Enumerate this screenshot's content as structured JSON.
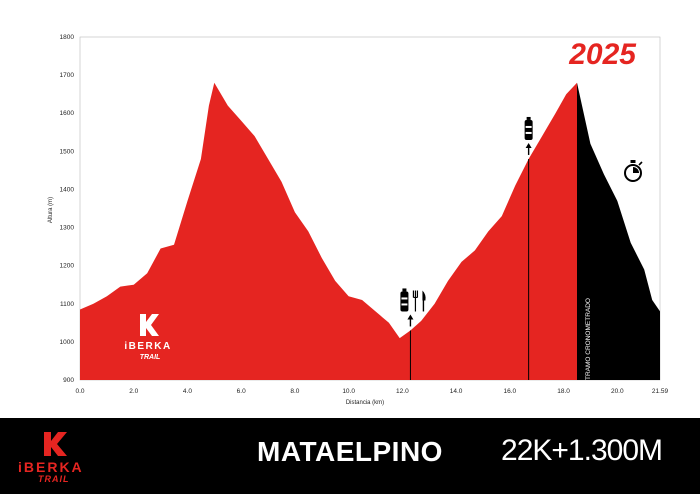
{
  "chart_data": {
    "type": "area",
    "title": "",
    "year_label": "2025",
    "xlabel": "Distancia (km)",
    "ylabel": "Altura (m)",
    "xlim": [
      0,
      21.59
    ],
    "ylim": [
      900,
      1800
    ],
    "x_ticks": [
      "0.0",
      "2.0",
      "4.0",
      "6.0",
      "8.0",
      "10.0",
      "12.0",
      "14.0",
      "16.0",
      "18.0",
      "20.0",
      "21.59"
    ],
    "y_ticks": [
      "1800",
      "1700",
      "1600",
      "1500",
      "1400",
      "1300",
      "1200",
      "1100",
      "1000",
      "900"
    ],
    "timed_section_label": "TRAMO CRONOMETRADO",
    "timed_section_start_km": 18.5,
    "profile": [
      {
        "x": 0.0,
        "y": 1085
      },
      {
        "x": 0.5,
        "y": 1100
      },
      {
        "x": 1.0,
        "y": 1120
      },
      {
        "x": 1.5,
        "y": 1145
      },
      {
        "x": 2.0,
        "y": 1150
      },
      {
        "x": 2.5,
        "y": 1180
      },
      {
        "x": 3.0,
        "y": 1245
      },
      {
        "x": 3.5,
        "y": 1255
      },
      {
        "x": 4.0,
        "y": 1370
      },
      {
        "x": 4.5,
        "y": 1480
      },
      {
        "x": 4.8,
        "y": 1620
      },
      {
        "x": 5.0,
        "y": 1680
      },
      {
        "x": 5.5,
        "y": 1620
      },
      {
        "x": 6.0,
        "y": 1580
      },
      {
        "x": 6.5,
        "y": 1540
      },
      {
        "x": 7.0,
        "y": 1480
      },
      {
        "x": 7.5,
        "y": 1420
      },
      {
        "x": 8.0,
        "y": 1340
      },
      {
        "x": 8.5,
        "y": 1290
      },
      {
        "x": 9.0,
        "y": 1220
      },
      {
        "x": 9.5,
        "y": 1160
      },
      {
        "x": 10.0,
        "y": 1120
      },
      {
        "x": 10.5,
        "y": 1110
      },
      {
        "x": 11.0,
        "y": 1080
      },
      {
        "x": 11.5,
        "y": 1050
      },
      {
        "x": 11.9,
        "y": 1010
      },
      {
        "x": 12.3,
        "y": 1030
      },
      {
        "x": 12.7,
        "y": 1055
      },
      {
        "x": 13.2,
        "y": 1100
      },
      {
        "x": 13.7,
        "y": 1160
      },
      {
        "x": 14.2,
        "y": 1210
      },
      {
        "x": 14.7,
        "y": 1240
      },
      {
        "x": 15.2,
        "y": 1290
      },
      {
        "x": 15.7,
        "y": 1330
      },
      {
        "x": 16.2,
        "y": 1410
      },
      {
        "x": 16.7,
        "y": 1480
      },
      {
        "x": 17.2,
        "y": 1540
      },
      {
        "x": 17.7,
        "y": 1600
      },
      {
        "x": 18.1,
        "y": 1650
      },
      {
        "x": 18.5,
        "y": 1680
      },
      {
        "x": 19.0,
        "y": 1520
      },
      {
        "x": 19.5,
        "y": 1440
      },
      {
        "x": 20.0,
        "y": 1370
      },
      {
        "x": 20.5,
        "y": 1260
      },
      {
        "x": 21.0,
        "y": 1190
      },
      {
        "x": 21.3,
        "y": 1110
      },
      {
        "x": 21.59,
        "y": 1080
      }
    ],
    "markers": [
      {
        "km": 12.3,
        "icons": [
          "water-bottle-icon",
          "fork-knife-icon"
        ]
      },
      {
        "km": 16.7,
        "icons": [
          "water-bottle-icon"
        ]
      },
      {
        "km": 20.8,
        "icons": [
          "stopwatch-icon"
        ]
      }
    ]
  },
  "brand": {
    "logo_letter": "K",
    "logo_text": "iBERKA",
    "logo_sub": "TRAIL"
  },
  "footer": {
    "race_name": "MATAELPINO",
    "race_stats": "22K+1.300M"
  },
  "colors": {
    "primary_red": "#e52521",
    "timed_black": "#000000"
  }
}
